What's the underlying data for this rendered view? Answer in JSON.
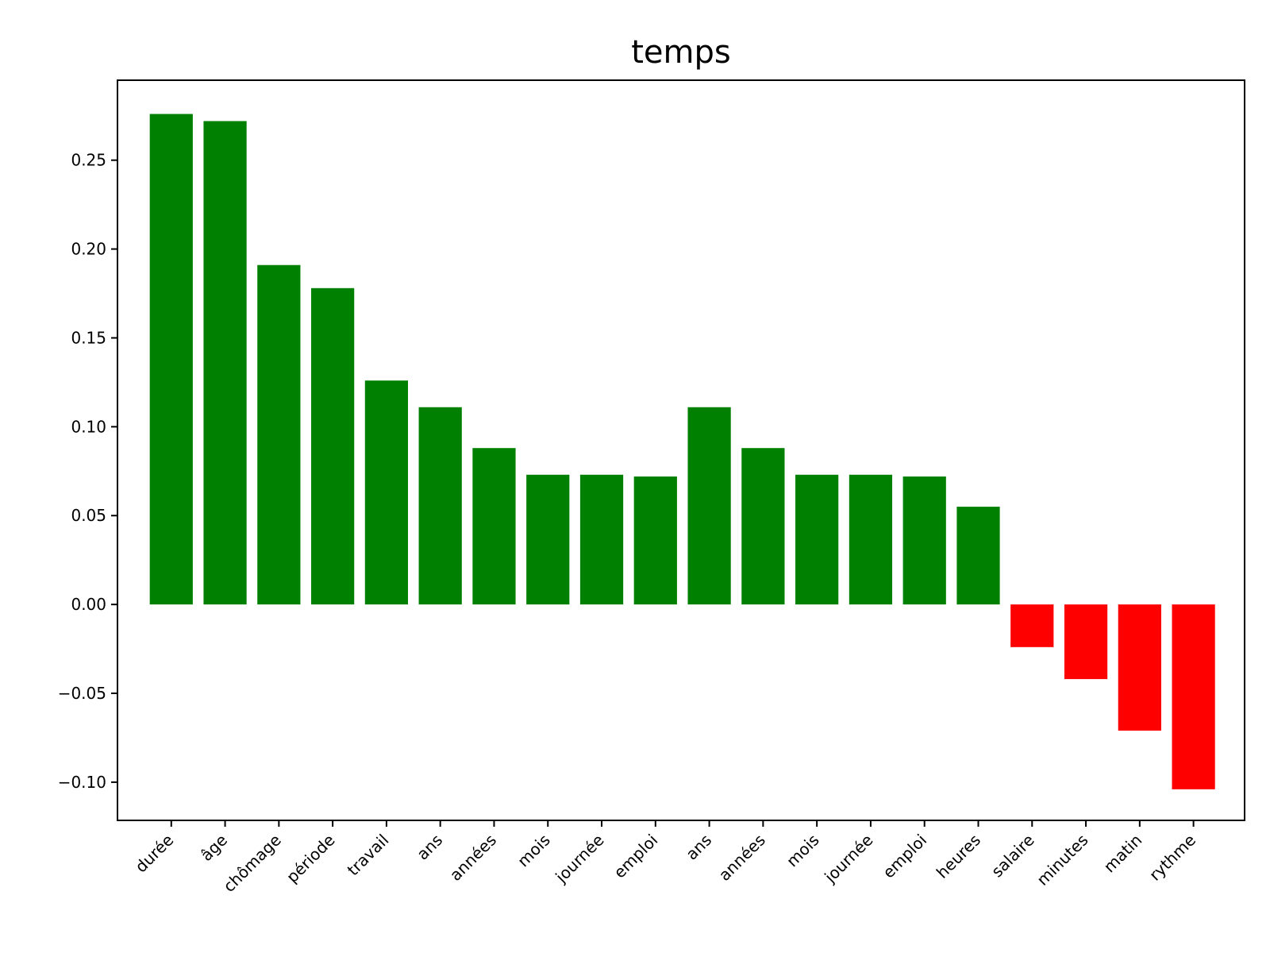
{
  "chart_data": {
    "type": "bar",
    "title": "temps",
    "xlabel": "",
    "ylabel": "",
    "ylim": [
      -0.1215,
      0.295
    ],
    "yticks": [
      -0.1,
      -0.05,
      0.0,
      0.05,
      0.1,
      0.15,
      0.2,
      0.25
    ],
    "ytick_labels": [
      "−0.10",
      "−0.05",
      "0.00",
      "0.05",
      "0.10",
      "0.15",
      "0.20",
      "0.25"
    ],
    "grid": false,
    "categories": [
      "durée",
      "âge",
      "chômage",
      "période",
      "travail",
      "ans",
      "années",
      "mois",
      "journée",
      "emploi",
      "ans",
      "années",
      "mois",
      "journée",
      "emploi",
      "heures",
      "salaire",
      "minutes",
      "matin",
      "rythme"
    ],
    "values": [
      0.276,
      0.272,
      0.191,
      0.178,
      0.126,
      0.111,
      0.088,
      0.073,
      0.073,
      0.072,
      0.111,
      0.088,
      0.073,
      0.073,
      0.072,
      0.055,
      -0.024,
      -0.042,
      -0.071,
      -0.104
    ],
    "colors": {
      "positive": "#008000",
      "negative": "#ff0000"
    }
  }
}
